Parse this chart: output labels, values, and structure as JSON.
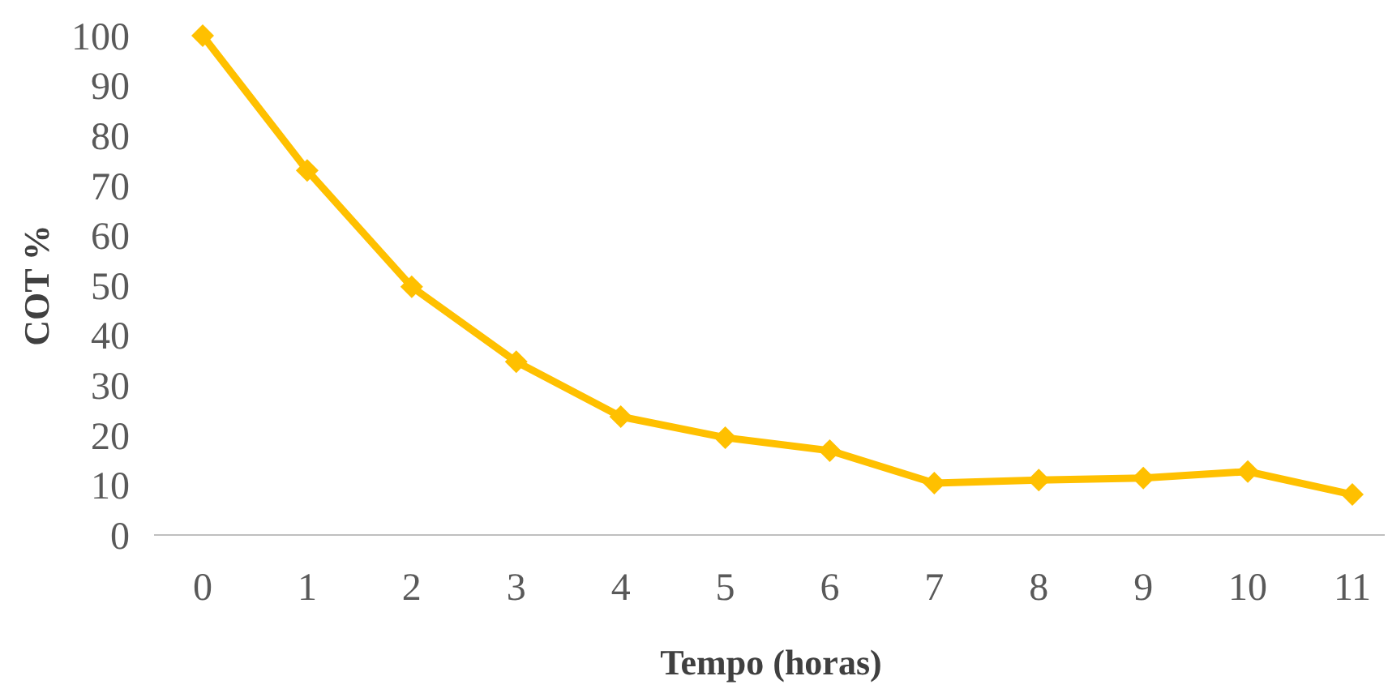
{
  "chart_data": {
    "type": "line",
    "xlabel": "Tempo (horas)",
    "ylabel": "COT %",
    "categories": [
      "0",
      "1",
      "2",
      "3",
      "4",
      "5",
      "6",
      "7",
      "8",
      "9",
      "10",
      "11"
    ],
    "series": [
      {
        "color": "#ffc000",
        "values": [
          100,
          73,
          49.7,
          34.7,
          23.7,
          19.5,
          16.9,
          10.4,
          11,
          11.4,
          12.7,
          8.1
        ]
      }
    ],
    "ylim": [
      0,
      100
    ],
    "yticks": [
      0,
      10,
      20,
      30,
      40,
      50,
      60,
      70,
      80,
      90,
      100
    ],
    "grid": false,
    "marker": "diamond",
    "line_style": "solid"
  }
}
